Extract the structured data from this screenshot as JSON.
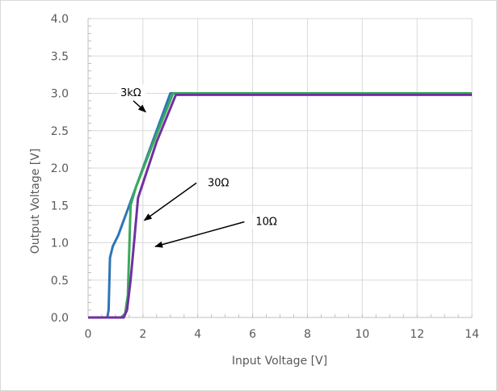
{
  "chart_data": {
    "type": "line",
    "title": "",
    "xlabel": "Input Voltage [V]",
    "ylabel": "Output Voltage [V]",
    "xlim": [
      0,
      14
    ],
    "ylim": [
      0,
      4.0
    ],
    "x_ticks": [
      "0",
      "2",
      "4",
      "6",
      "8",
      "10",
      "12",
      "14"
    ],
    "y_ticks": [
      "0.0",
      "0.5",
      "1.0",
      "1.5",
      "2.0",
      "2.5",
      "3.0",
      "3.5",
      "4.0"
    ],
    "grid": true,
    "legend": "none",
    "series": [
      {
        "color": "#2e75b6",
        "points": [
          [
            0,
            0
          ],
          [
            0.7,
            0
          ],
          [
            0.75,
            0.1
          ],
          [
            0.8,
            0.8
          ],
          [
            0.9,
            0.95
          ],
          [
            1.1,
            1.1
          ],
          [
            1.4,
            1.4
          ],
          [
            1.8,
            1.8
          ],
          [
            2.5,
            2.5
          ],
          [
            3.0,
            3.0
          ],
          [
            14,
            3.0
          ]
        ]
      },
      {
        "color": "#3aaa5c",
        "points": [
          [
            0,
            0
          ],
          [
            1.2,
            0
          ],
          [
            1.35,
            0.05
          ],
          [
            1.45,
            0.3
          ],
          [
            1.55,
            1.5
          ],
          [
            1.75,
            1.75
          ],
          [
            2.5,
            2.45
          ],
          [
            3.1,
            3.0
          ],
          [
            14,
            3.0
          ]
        ]
      },
      {
        "color": "#7030a0",
        "points": [
          [
            0,
            0
          ],
          [
            1.3,
            0
          ],
          [
            1.42,
            0.1
          ],
          [
            1.55,
            0.5
          ],
          [
            1.7,
            1.1
          ],
          [
            1.82,
            1.6
          ],
          [
            2.5,
            2.35
          ],
          [
            3.2,
            2.98
          ],
          [
            14,
            2.98
          ]
        ]
      }
    ],
    "annotations": [
      {
        "text": "3kΩ",
        "arrow_from": [
          1.65,
          2.9
        ],
        "arrow_to": [
          2.1,
          2.75
        ]
      },
      {
        "text": "30Ω",
        "arrow_from": [
          3.95,
          1.8
        ],
        "arrow_to": [
          2.05,
          1.3
        ]
      },
      {
        "text": "10Ω",
        "arrow_from": [
          5.7,
          1.28
        ],
        "arrow_to": [
          2.45,
          0.95
        ]
      }
    ]
  }
}
